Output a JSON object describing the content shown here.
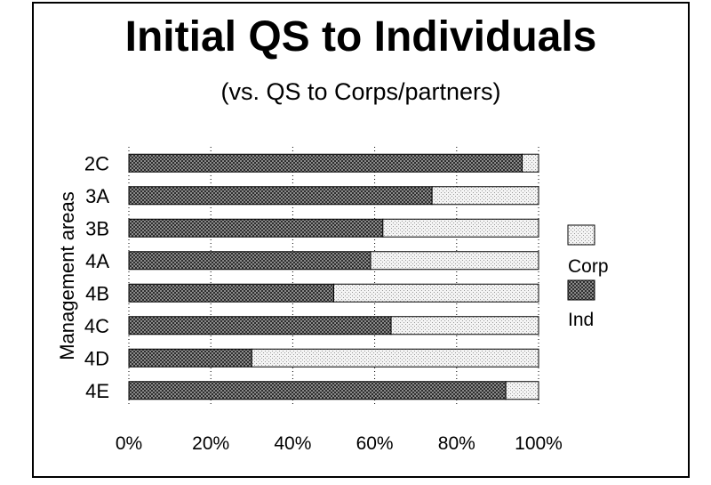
{
  "chart_data": {
    "type": "bar",
    "stacked": true,
    "orientation": "horizontal",
    "normalized": true,
    "title": "Initial QS to Individuals",
    "subtitle": "(vs. QS to Corps/partners)",
    "ylabel": "Management areas",
    "xlabel": "",
    "categories": [
      "2C",
      "3A",
      "3B",
      "4A",
      "4B",
      "4C",
      "4D",
      "4E"
    ],
    "series": [
      {
        "name": "Ind",
        "values": [
          96,
          74,
          62,
          59,
          50,
          64,
          30,
          92
        ],
        "color": "#5a5a5a"
      },
      {
        "name": "Corp",
        "values": [
          4,
          26,
          38,
          41,
          50,
          36,
          70,
          8
        ],
        "color": "#e8e8e8"
      }
    ],
    "xlim": [
      0,
      100
    ],
    "xticks": [
      "0%",
      "20%",
      "40%",
      "60%",
      "80%",
      "100%"
    ],
    "grid": true,
    "legend_position": "right",
    "legend_order": [
      "Corp",
      "Ind"
    ]
  }
}
